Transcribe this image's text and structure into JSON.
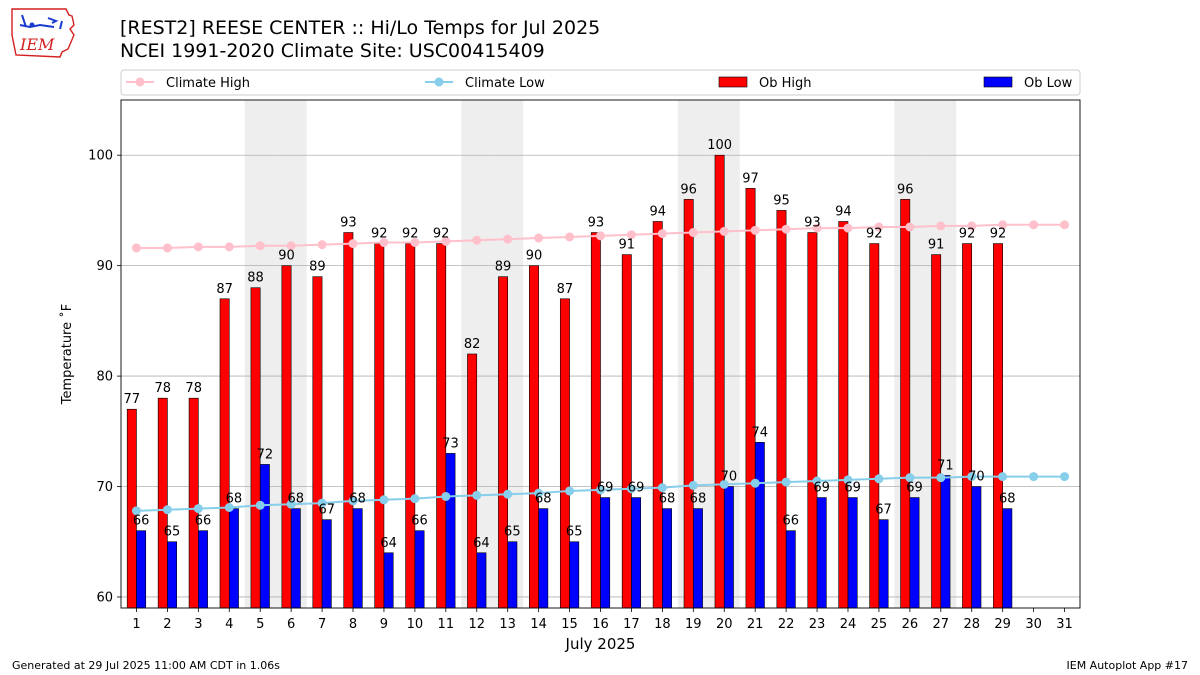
{
  "header": {
    "logo_text": "IEM",
    "title_line1": "[REST2] REESE CENTER :: Hi/Lo Temps for Jul 2025",
    "title_line2": "NCEI 1991-2020 Climate Site: USC00415409"
  },
  "footer": {
    "generated": "Generated at 29 Jul 2025 11:00 AM CDT in 1.06s",
    "app": "IEM Autoplot App #17"
  },
  "colors": {
    "ob_high": "#ff0000",
    "ob_low": "#0000ff",
    "climate_high": "#ffc0cb",
    "climate_low": "#87ceeb",
    "weekend_shade": "#eeeeee",
    "logo_red": "#d42020",
    "logo_blue": "#1a3ccc"
  },
  "chart_data": {
    "type": "bar",
    "xlabel": "July 2025",
    "ylabel": "Temperature ˚F",
    "ylim": [
      59,
      105
    ],
    "yticks": [
      60,
      70,
      80,
      90,
      100
    ],
    "grid": true,
    "legend_position": "top",
    "categories": [
      "1",
      "2",
      "3",
      "4",
      "5",
      "6",
      "7",
      "8",
      "9",
      "10",
      "11",
      "12",
      "13",
      "14",
      "15",
      "16",
      "17",
      "18",
      "19",
      "20",
      "21",
      "22",
      "23",
      "24",
      "25",
      "26",
      "27",
      "28",
      "29",
      "30",
      "31"
    ],
    "shaded_days": [
      5,
      6,
      12,
      13,
      19,
      20,
      26,
      27
    ],
    "series": [
      {
        "name": "Climate High",
        "kind": "line",
        "values": [
          91.6,
          91.6,
          91.7,
          91.7,
          91.8,
          91.8,
          91.9,
          92.0,
          92.1,
          92.1,
          92.2,
          92.3,
          92.4,
          92.5,
          92.6,
          92.7,
          92.8,
          92.9,
          93.0,
          93.1,
          93.2,
          93.3,
          93.4,
          93.4,
          93.5,
          93.5,
          93.6,
          93.6,
          93.7,
          93.7,
          93.7
        ]
      },
      {
        "name": "Climate Low",
        "kind": "line",
        "values": [
          67.8,
          67.9,
          68.0,
          68.1,
          68.3,
          68.4,
          68.5,
          68.7,
          68.8,
          68.9,
          69.1,
          69.2,
          69.3,
          69.4,
          69.6,
          69.7,
          69.8,
          69.9,
          70.1,
          70.2,
          70.3,
          70.4,
          70.5,
          70.6,
          70.7,
          70.8,
          70.8,
          70.9,
          70.9,
          70.9,
          70.9
        ]
      },
      {
        "name": "Ob High",
        "kind": "bar",
        "values": [
          77,
          78,
          78,
          87,
          88,
          90,
          89,
          93,
          92,
          92,
          92,
          82,
          89,
          90,
          87,
          93,
          91,
          94,
          96,
          100,
          97,
          95,
          93,
          94,
          92,
          96,
          91,
          92,
          92,
          null,
          null
        ]
      },
      {
        "name": "Ob Low",
        "kind": "bar",
        "values": [
          66,
          65,
          66,
          68,
          72,
          68,
          67,
          68,
          64,
          66,
          73,
          64,
          65,
          68,
          65,
          69,
          69,
          68,
          68,
          70,
          74,
          66,
          69,
          69,
          67,
          69,
          71,
          70,
          68,
          null,
          null
        ]
      }
    ]
  }
}
